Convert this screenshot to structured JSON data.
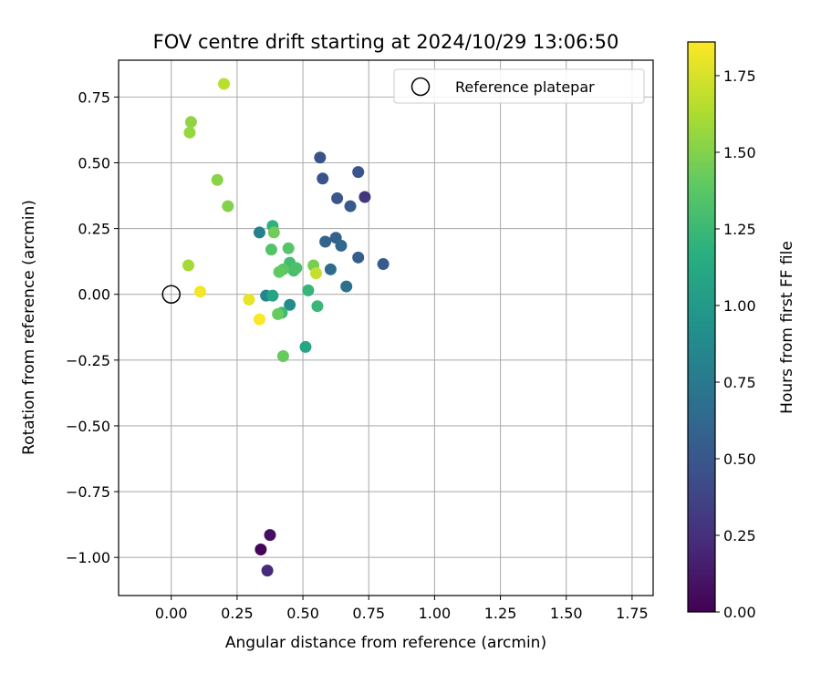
{
  "chart_data": {
    "type": "scatter",
    "title": "FOV centre drift starting at 2024/10/29 13:06:50",
    "xlabel": "Angular distance from reference (arcmin)",
    "ylabel": "Rotation from reference (arcmin)",
    "xlim": [
      -0.2,
      1.83
    ],
    "ylim": [
      -1.145,
      0.89
    ],
    "xticks": [
      0.0,
      0.25,
      0.5,
      0.75,
      1.0,
      1.25,
      1.5,
      1.75
    ],
    "xtick_labels": [
      "0.00",
      "0.25",
      "0.50",
      "0.75",
      "1.00",
      "1.25",
      "1.50",
      "1.75"
    ],
    "yticks": [
      -1.0,
      -0.75,
      -0.5,
      -0.25,
      0.0,
      0.25,
      0.5,
      0.75
    ],
    "ytick_labels": [
      "−1.00",
      "−0.75",
      "−0.50",
      "−0.25",
      "0.00",
      "0.25",
      "0.50",
      "0.75"
    ],
    "grid": true,
    "legend": {
      "placement": "top-right",
      "entries": [
        "Reference platepar"
      ]
    },
    "reference_point": {
      "x": 0.0,
      "y": 0.0,
      "marker": "open-circle",
      "label": "Reference platepar"
    },
    "colormap": "viridis",
    "colorbar": {
      "label": "Hours from first FF file",
      "range": [
        0.0,
        1.86
      ],
      "ticks": [
        0.0,
        0.25,
        0.5,
        0.75,
        1.0,
        1.25,
        1.5,
        1.75
      ],
      "tick_labels": [
        "0.00",
        "0.25",
        "0.50",
        "0.75",
        "1.00",
        "1.25",
        "1.50",
        "1.75"
      ]
    },
    "points": [
      {
        "x": 0.34,
        "y": -0.97,
        "c": 0.02
      },
      {
        "x": 0.375,
        "y": -0.915,
        "c": 0.08
      },
      {
        "x": 0.365,
        "y": -1.05,
        "c": 0.22
      },
      {
        "x": 0.735,
        "y": 0.37,
        "c": 0.28
      },
      {
        "x": 0.565,
        "y": 0.52,
        "c": 0.47
      },
      {
        "x": 0.575,
        "y": 0.44,
        "c": 0.48
      },
      {
        "x": 0.71,
        "y": 0.465,
        "c": 0.49
      },
      {
        "x": 0.63,
        "y": 0.365,
        "c": 0.5
      },
      {
        "x": 0.68,
        "y": 0.335,
        "c": 0.52
      },
      {
        "x": 0.805,
        "y": 0.115,
        "c": 0.53
      },
      {
        "x": 0.71,
        "y": 0.14,
        "c": 0.55
      },
      {
        "x": 0.625,
        "y": 0.215,
        "c": 0.57
      },
      {
        "x": 0.585,
        "y": 0.2,
        "c": 0.6
      },
      {
        "x": 0.645,
        "y": 0.185,
        "c": 0.63
      },
      {
        "x": 0.605,
        "y": 0.095,
        "c": 0.65
      },
      {
        "x": 0.665,
        "y": 0.03,
        "c": 0.68
      },
      {
        "x": 0.335,
        "y": 0.235,
        "c": 0.8
      },
      {
        "x": 0.36,
        "y": -0.005,
        "c": 0.85
      },
      {
        "x": 0.45,
        "y": -0.04,
        "c": 0.9
      },
      {
        "x": 0.385,
        "y": -0.005,
        "c": 1.08
      },
      {
        "x": 0.51,
        "y": -0.2,
        "c": 1.1
      },
      {
        "x": 0.385,
        "y": 0.26,
        "c": 1.2
      },
      {
        "x": 0.52,
        "y": 0.015,
        "c": 1.22
      },
      {
        "x": 0.555,
        "y": -0.045,
        "c": 1.24
      },
      {
        "x": 0.42,
        "y": -0.07,
        "c": 1.26
      },
      {
        "x": 0.45,
        "y": 0.12,
        "c": 1.28
      },
      {
        "x": 0.465,
        "y": 0.09,
        "c": 1.3
      },
      {
        "x": 0.475,
        "y": 0.1,
        "c": 1.32
      },
      {
        "x": 0.38,
        "y": 0.17,
        "c": 1.34
      },
      {
        "x": 0.445,
        "y": 0.175,
        "c": 1.36
      },
      {
        "x": 0.425,
        "y": 0.095,
        "c": 1.38
      },
      {
        "x": 0.41,
        "y": 0.085,
        "c": 1.4
      },
      {
        "x": 0.405,
        "y": -0.075,
        "c": 1.42
      },
      {
        "x": 0.425,
        "y": -0.235,
        "c": 1.42
      },
      {
        "x": 0.39,
        "y": 0.235,
        "c": 1.45
      },
      {
        "x": 0.54,
        "y": 0.11,
        "c": 1.47
      },
      {
        "x": 0.215,
        "y": 0.335,
        "c": 1.5
      },
      {
        "x": 0.175,
        "y": 0.435,
        "c": 1.52
      },
      {
        "x": 0.075,
        "y": 0.655,
        "c": 1.54
      },
      {
        "x": 0.07,
        "y": 0.615,
        "c": 1.56
      },
      {
        "x": 0.065,
        "y": 0.11,
        "c": 1.6
      },
      {
        "x": 0.2,
        "y": 0.8,
        "c": 1.66
      },
      {
        "x": 0.55,
        "y": 0.08,
        "c": 1.7
      },
      {
        "x": 0.295,
        "y": -0.02,
        "c": 1.8
      },
      {
        "x": 0.11,
        "y": 0.01,
        "c": 1.83
      },
      {
        "x": 0.335,
        "y": -0.095,
        "c": 1.85
      }
    ]
  }
}
